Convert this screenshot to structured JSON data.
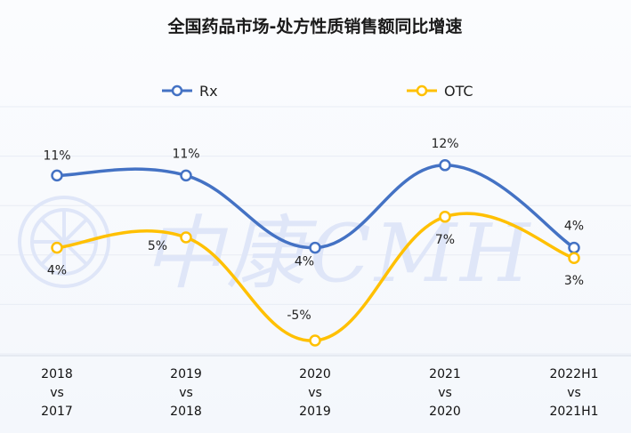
{
  "chart_data": {
    "type": "line",
    "title": "全国药品市场-处方性质销售额同比增速",
    "xlabel": "",
    "ylabel": "",
    "categories": [
      [
        "2018",
        "vs",
        "2017"
      ],
      [
        "2019",
        "vs",
        "2018"
      ],
      [
        "2020",
        "vs",
        "2019"
      ],
      [
        "2021",
        "vs",
        "2020"
      ],
      [
        "2022H1",
        "vs",
        "2021H1"
      ]
    ],
    "series": [
      {
        "name": "Rx",
        "color": "#4472c4",
        "values": [
          11,
          11,
          4,
          12,
          4
        ],
        "labels": [
          "11%",
          "11%",
          "4%",
          "12%",
          "4%"
        ]
      },
      {
        "name": "OTC",
        "color": "#ffc000",
        "values": [
          4,
          5,
          -5,
          7,
          3
        ],
        "labels": [
          "4%",
          "5%",
          "-5%",
          "7%",
          "3%"
        ]
      }
    ],
    "ylim": [
      -6,
      14
    ],
    "grid": true,
    "legend": "top-center",
    "watermark": "中康CMH"
  }
}
